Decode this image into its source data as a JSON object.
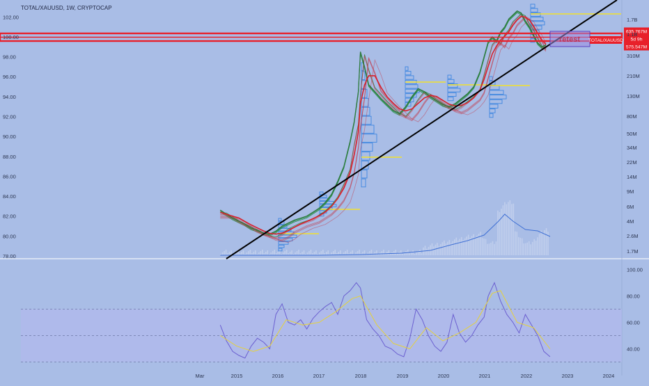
{
  "header": {
    "title": "TOTAL/XAUUSD, 1W, CRYPTOCAP"
  },
  "colors": {
    "background": "#a9bde6",
    "trendline": "#000000",
    "resistance_band": "#e8202a",
    "ribbon_green": "#1f8a3a",
    "ribbon_red": "#c23a4a",
    "volume_profile": "#3e86e0",
    "poc_line": "#f2e22c",
    "rsi_line": "#6b5fd0",
    "rsi_ma": "#e6d23a",
    "rsi_band": "#b5b8ee"
  },
  "chart_data": [
    {
      "type": "line",
      "name": "price-panel",
      "ylim": [
        78,
        103
      ],
      "y_ticks": [
        "102.00",
        "100.00",
        "98.00",
        "96.00",
        "94.00",
        "92.00",
        "90.00",
        "88.00",
        "86.00",
        "84.00",
        "82.00",
        "80.00",
        "78.00"
      ],
      "x_ticks": [
        "Mar",
        "2015",
        "2016",
        "2017",
        "2018",
        "2019",
        "2020",
        "2021",
        "2022",
        "2023",
        "2024"
      ],
      "right_scale_ticks": [
        "1.7B",
        "1.1B",
        "310M",
        "210M",
        "130M",
        "80M",
        "50M",
        "34M",
        "22M",
        "14M",
        "9M",
        "6M",
        "4M",
        "2.6M",
        "1.7M"
      ],
      "price_labels": {
        "upper": "635.767M",
        "current": "5d 9h",
        "lower": "575.547M",
        "symbol": "TOTAL/XAUUSD"
      },
      "annotation": "retest",
      "series": [
        {
          "x": [
            2014.6,
            2014.75,
            2014.9,
            2015.05,
            2015.2,
            2015.35,
            2015.5,
            2015.65,
            2015.8,
            2015.95,
            2016.1,
            2016.25,
            2016.4,
            2016.55,
            2016.7,
            2016.85,
            2017.0,
            2017.15,
            2017.3,
            2017.45,
            2017.6,
            2017.75,
            2017.85,
            2017.95,
            2018.0,
            2018.1,
            2018.2,
            2018.35,
            2018.5,
            2018.65,
            2018.8,
            2018.95,
            2019.1,
            2019.25,
            2019.4,
            2019.55,
            2019.7,
            2019.85,
            2020.0,
            2020.15,
            2020.3,
            2020.45,
            2020.6,
            2020.75,
            2020.9,
            2021.0,
            2021.1,
            2021.2,
            2021.3,
            2021.4,
            2021.5,
            2021.6,
            2021.7,
            2021.8,
            2021.9,
            2022.0,
            2022.1,
            2022.2,
            2022.3,
            2022.4,
            2022.5
          ],
          "values": [
            82.6,
            82.2,
            81.8,
            81.5,
            81.2,
            80.8,
            80.6,
            80.3,
            80.2,
            80.5,
            81.0,
            81.3,
            81.6,
            81.8,
            82.0,
            82.4,
            82.8,
            83.4,
            84.2,
            85.5,
            87.0,
            89.5,
            91.5,
            94.5,
            98.5,
            97.0,
            95.2,
            94.5,
            93.8,
            93.2,
            92.6,
            92.3,
            93.0,
            94.0,
            94.8,
            94.5,
            94.0,
            93.6,
            93.2,
            93.0,
            93.3,
            93.8,
            94.3,
            95.0,
            96.5,
            98.0,
            99.5,
            100.0,
            99.6,
            100.5,
            101.0,
            101.8,
            102.2,
            102.6,
            102.4,
            101.6,
            101.0,
            100.2,
            99.4,
            99.0,
            99.2
          ]
        }
      ]
    },
    {
      "type": "line",
      "name": "rsi-panel",
      "ylim": [
        25,
        105
      ],
      "y_ticks": [
        "100.00",
        "80.00",
        "60.00",
        "40.00"
      ],
      "series": [
        {
          "x": [
            2014.6,
            2014.75,
            2014.9,
            2015.05,
            2015.2,
            2015.35,
            2015.5,
            2015.65,
            2015.8,
            2015.95,
            2016.1,
            2016.25,
            2016.4,
            2016.55,
            2016.7,
            2016.85,
            2017.0,
            2017.15,
            2017.3,
            2017.45,
            2017.6,
            2017.75,
            2017.9,
            2018.0,
            2018.15,
            2018.3,
            2018.45,
            2018.6,
            2018.75,
            2018.9,
            2019.05,
            2019.2,
            2019.35,
            2019.5,
            2019.65,
            2019.8,
            2019.95,
            2020.1,
            2020.25,
            2020.4,
            2020.55,
            2020.7,
            2020.85,
            2021.0,
            2021.1,
            2021.25,
            2021.4,
            2021.55,
            2021.7,
            2021.85,
            2022.0,
            2022.15,
            2022.3,
            2022.45,
            2022.6
          ],
          "values": [
            58,
            46,
            38,
            35,
            33,
            42,
            48,
            45,
            40,
            66,
            74,
            60,
            58,
            62,
            55,
            63,
            68,
            72,
            75,
            66,
            80,
            84,
            90,
            86,
            62,
            55,
            50,
            42,
            40,
            36,
            34,
            48,
            70,
            62,
            50,
            42,
            38,
            45,
            66,
            52,
            45,
            50,
            58,
            64,
            80,
            90,
            76,
            66,
            60,
            52,
            66,
            58,
            50,
            38,
            34
          ]
        },
        {
          "x": [
            2014.6,
            2015.0,
            2015.4,
            2015.8,
            2016.2,
            2016.6,
            2017.0,
            2017.4,
            2017.8,
            2018.0,
            2018.4,
            2018.8,
            2019.2,
            2019.6,
            2020.0,
            2020.4,
            2020.8,
            2021.2,
            2021.4,
            2021.8,
            2022.2,
            2022.6
          ],
          "values": [
            50,
            42,
            38,
            42,
            62,
            58,
            60,
            68,
            78,
            80,
            58,
            44,
            40,
            56,
            46,
            52,
            60,
            82,
            84,
            60,
            56,
            40
          ]
        }
      ]
    }
  ]
}
